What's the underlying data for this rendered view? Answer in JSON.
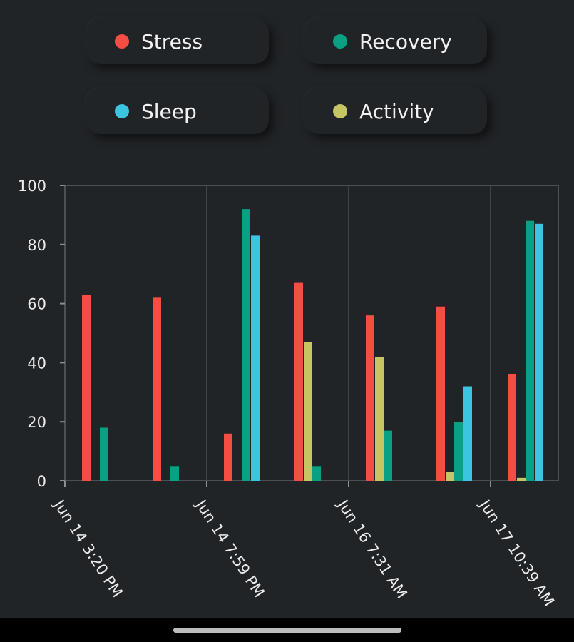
{
  "legend": [
    {
      "label": "Stress",
      "color": "#f44e43"
    },
    {
      "label": "Recovery",
      "color": "#0aa084"
    },
    {
      "label": "Sleep",
      "color": "#3bc5e0"
    },
    {
      "label": "Activity",
      "color": "#c7c563"
    }
  ],
  "chart_data": {
    "type": "bar",
    "title": "",
    "xlabel": "",
    "ylabel": "",
    "ylim": [
      0,
      100
    ],
    "yticks": [
      0,
      20,
      40,
      60,
      80,
      100
    ],
    "grid": "vertical lines at labeled x ticks",
    "x_tick_labels": [
      "Jun 14 3:20 PM",
      "Jun 14 7:59 PM",
      "Jun 16 7:31 AM",
      "Jun 17 10:39 AM"
    ],
    "series": [
      {
        "name": "Stress",
        "color": "#f44e43",
        "values": [
          63,
          62,
          16,
          67,
          56,
          59,
          36
        ]
      },
      {
        "name": "Activity",
        "color": "#c7c563",
        "values": [
          0,
          0,
          0,
          47,
          42,
          3,
          1
        ]
      },
      {
        "name": "Recovery",
        "color": "#0aa084",
        "values": [
          18,
          5,
          92,
          5,
          17,
          20,
          88
        ]
      },
      {
        "name": "Sleep",
        "color": "#3bc5e0",
        "values": [
          0,
          0,
          83,
          0,
          0,
          32,
          87
        ]
      }
    ]
  }
}
